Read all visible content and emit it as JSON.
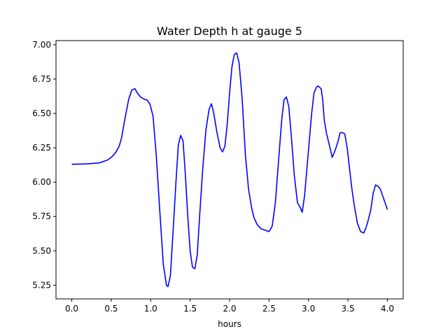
{
  "chart_data": {
    "type": "line",
    "title": "Water Depth h at gauge 5",
    "xlabel": "hours",
    "ylabel": "",
    "xlim": [
      -0.2,
      4.2
    ],
    "ylim": [
      5.15,
      7.03
    ],
    "xticks": [
      0.0,
      0.5,
      1.0,
      1.5,
      2.0,
      2.5,
      3.0,
      3.5,
      4.0
    ],
    "xtick_labels": [
      "0.0",
      "0.5",
      "1.0",
      "1.5",
      "2.0",
      "2.5",
      "3.0",
      "3.5",
      "4.0"
    ],
    "yticks": [
      5.25,
      5.5,
      5.75,
      6.0,
      6.25,
      6.5,
      6.75,
      7.0
    ],
    "ytick_labels": [
      "5.25",
      "5.50",
      "5.75",
      "6.00",
      "6.25",
      "6.50",
      "6.75",
      "7.00"
    ],
    "grid": false,
    "series": [
      {
        "color": "#0000ff",
        "x": [
          0.0,
          0.2,
          0.35,
          0.45,
          0.5,
          0.55,
          0.6,
          0.63,
          0.67,
          0.72,
          0.76,
          0.8,
          0.83,
          0.87,
          0.9,
          0.93,
          0.95,
          0.99,
          1.03,
          1.07,
          1.12,
          1.16,
          1.2,
          1.22,
          1.25,
          1.29,
          1.32,
          1.35,
          1.38,
          1.41,
          1.44,
          1.47,
          1.5,
          1.53,
          1.56,
          1.59,
          1.62,
          1.66,
          1.7,
          1.74,
          1.77,
          1.8,
          1.84,
          1.88,
          1.91,
          1.94,
          1.97,
          2.0,
          2.03,
          2.06,
          2.09,
          2.12,
          2.16,
          2.2,
          2.24,
          2.28,
          2.31,
          2.35,
          2.4,
          2.45,
          2.5,
          2.54,
          2.58,
          2.62,
          2.66,
          2.69,
          2.72,
          2.75,
          2.78,
          2.82,
          2.86,
          2.9,
          2.92,
          2.95,
          2.98,
          3.01,
          3.04,
          3.07,
          3.1,
          3.12,
          3.14,
          3.16,
          3.18,
          3.2,
          3.23,
          3.26,
          3.3,
          3.33,
          3.36,
          3.38,
          3.4,
          3.43,
          3.46,
          3.49,
          3.52,
          3.55,
          3.58,
          3.62,
          3.66,
          3.7,
          3.73,
          3.76,
          3.79,
          3.82,
          3.85,
          3.88,
          3.91,
          3.94,
          3.97,
          4.0
        ],
        "y": [
          6.13,
          6.133,
          6.14,
          6.16,
          6.18,
          6.21,
          6.26,
          6.32,
          6.45,
          6.6,
          6.67,
          6.68,
          6.65,
          6.62,
          6.61,
          6.6,
          6.6,
          6.57,
          6.48,
          6.2,
          5.75,
          5.4,
          5.25,
          5.24,
          5.32,
          5.7,
          6.0,
          6.27,
          6.34,
          6.3,
          6.05,
          5.75,
          5.5,
          5.38,
          5.37,
          5.47,
          5.75,
          6.1,
          6.38,
          6.53,
          6.57,
          6.5,
          6.36,
          6.25,
          6.22,
          6.26,
          6.42,
          6.65,
          6.84,
          6.93,
          6.94,
          6.87,
          6.6,
          6.2,
          5.95,
          5.81,
          5.74,
          5.69,
          5.66,
          5.65,
          5.64,
          5.68,
          5.85,
          6.15,
          6.45,
          6.6,
          6.62,
          6.55,
          6.35,
          6.05,
          5.85,
          5.81,
          5.78,
          5.9,
          6.1,
          6.3,
          6.5,
          6.65,
          6.69,
          6.7,
          6.69,
          6.68,
          6.6,
          6.45,
          6.35,
          6.28,
          6.18,
          6.22,
          6.27,
          6.31,
          6.36,
          6.36,
          6.35,
          6.25,
          6.1,
          5.95,
          5.83,
          5.7,
          5.64,
          5.63,
          5.67,
          5.73,
          5.8,
          5.92,
          5.98,
          5.97,
          5.95,
          5.9,
          5.85,
          5.8
        ]
      }
    ]
  }
}
